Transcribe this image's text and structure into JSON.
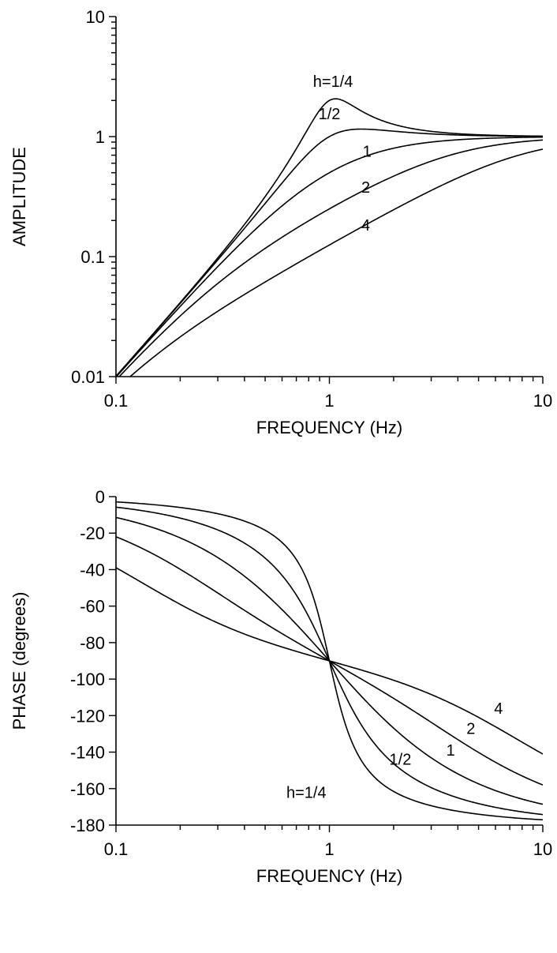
{
  "chart_data": [
    {
      "type": "line",
      "xlabel": "FREQUENCY (Hz)",
      "ylabel": "AMPLITUDE",
      "x_scale": "log",
      "y_scale": "log",
      "xlim": [
        0.1,
        10
      ],
      "ylim": [
        0.01,
        10
      ],
      "x_ticks": [
        "0.1",
        "1",
        "10"
      ],
      "y_ticks": [
        "0.01",
        "0.1",
        "1",
        "10"
      ],
      "grid": false,
      "natural_frequency_hz": 1,
      "series": [
        {
          "name": "h=1/4",
          "h": 0.25
        },
        {
          "name": "1/2",
          "h": 0.5
        },
        {
          "name": "1",
          "h": 1
        },
        {
          "name": "2",
          "h": 2
        },
        {
          "name": "4",
          "h": 4
        }
      ],
      "annotations": [
        {
          "text": "h=1/4",
          "x": 1.04,
          "y": 2.6
        },
        {
          "text": "1/2",
          "x": 1.0,
          "y": 1.4
        },
        {
          "text": "1",
          "x": 1.5,
          "y": 0.68
        },
        {
          "text": "2",
          "x": 1.48,
          "y": 0.34
        },
        {
          "text": "4",
          "x": 1.48,
          "y": 0.165
        }
      ]
    },
    {
      "type": "line",
      "xlabel": "FREQUENCY (Hz)",
      "ylabel": "PHASE (degrees)",
      "x_scale": "log",
      "y_scale": "linear",
      "xlim": [
        0.1,
        10
      ],
      "ylim": [
        -180,
        0
      ],
      "x_ticks": [
        "0.1",
        "1",
        "10"
      ],
      "y_ticks": [
        "0",
        "-20",
        "-40",
        "-60",
        "-80",
        "-100",
        "-120",
        "-140",
        "-160",
        "-180"
      ],
      "grid": false,
      "natural_frequency_hz": 1,
      "series": [
        {
          "name": "h=1/4",
          "h": 0.25
        },
        {
          "name": "1/2",
          "h": 0.5
        },
        {
          "name": "1",
          "h": 1
        },
        {
          "name": "2",
          "h": 2
        },
        {
          "name": "4",
          "h": 4
        }
      ],
      "annotations": [
        {
          "text": "h=1/4",
          "x": 0.78,
          "y": -165
        },
        {
          "text": "1/2",
          "x": 2.15,
          "y": -147
        },
        {
          "text": "1",
          "x": 3.7,
          "y": -142
        },
        {
          "text": "2",
          "x": 4.6,
          "y": -130
        },
        {
          "text": "4",
          "x": 6.2,
          "y": -119
        }
      ]
    }
  ]
}
